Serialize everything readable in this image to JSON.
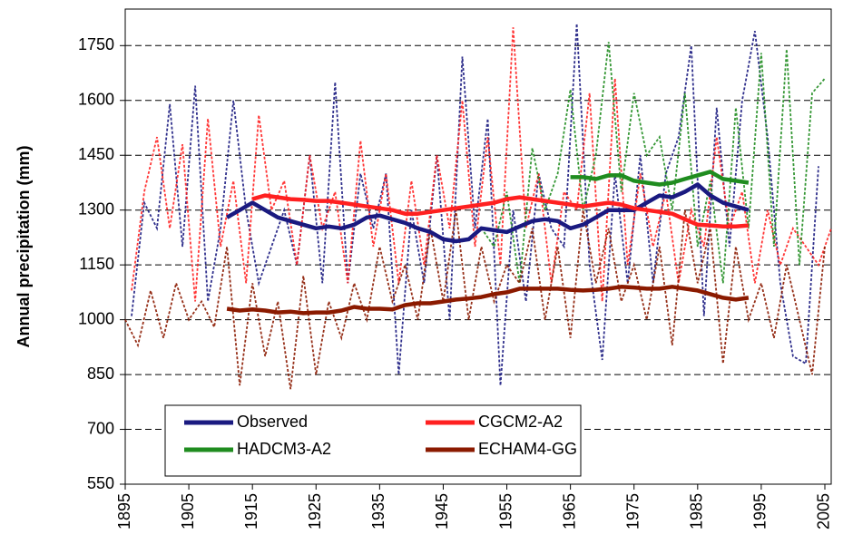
{
  "chart_data": {
    "type": "line",
    "y_label": "Annual precipitation (mm)",
    "xlim": [
      1895,
      2006
    ],
    "xticks": [
      1895,
      1905,
      1915,
      1925,
      1935,
      1945,
      1955,
      1965,
      1975,
      1985,
      1995,
      2005
    ],
    "ylim": [
      550,
      1850
    ],
    "yticks": [
      550,
      700,
      850,
      1000,
      1150,
      1300,
      1450,
      1600,
      1750
    ],
    "grid": true,
    "legend": "bottom-left",
    "series": [
      {
        "name": "Observed",
        "color": "#1a1a80",
        "x": [
          1911,
          1913,
          1915,
          1917,
          1919,
          1921,
          1923,
          1925,
          1927,
          1929,
          1931,
          1933,
          1935,
          1937,
          1939,
          1941,
          1943,
          1945,
          1947,
          1949,
          1951,
          1953,
          1955,
          1957,
          1959,
          1961,
          1963,
          1965,
          1967,
          1969,
          1971,
          1973,
          1975,
          1977,
          1979,
          1981,
          1983,
          1985,
          1987,
          1989,
          1991,
          1993
        ],
        "values": [
          1280,
          1300,
          1320,
          1300,
          1280,
          1270,
          1260,
          1250,
          1255,
          1250,
          1260,
          1280,
          1285,
          1275,
          1265,
          1250,
          1240,
          1220,
          1215,
          1220,
          1250,
          1245,
          1240,
          1255,
          1270,
          1275,
          1270,
          1250,
          1260,
          1280,
          1300,
          1300,
          1300,
          1320,
          1340,
          1335,
          1350,
          1370,
          1340,
          1320,
          1310,
          1300
        ],
        "annual_x": [
          1896,
          1898,
          1900,
          1902,
          1904,
          1906,
          1908,
          1910,
          1912,
          1914,
          1916,
          1918,
          1920,
          1922,
          1924,
          1926,
          1928,
          1930,
          1932,
          1934,
          1936,
          1938,
          1940,
          1942,
          1944,
          1946,
          1948,
          1950,
          1952,
          1954,
          1956,
          1958,
          1960,
          1962,
          1964,
          1966,
          1968,
          1970,
          1972,
          1974,
          1976,
          1978,
          1980,
          1982,
          1984,
          1986,
          1988,
          1990,
          1992,
          1994,
          1996,
          1998,
          2000,
          2002,
          2004
        ],
        "annual_values": [
          1010,
          1320,
          1250,
          1590,
          1200,
          1640,
          1050,
          1250,
          1600,
          1300,
          1100,
          1200,
          1300,
          1150,
          1450,
          1100,
          1650,
          1100,
          1400,
          1250,
          1400,
          850,
          1300,
          1100,
          1450,
          1000,
          1720,
          1250,
          1550,
          820,
          1300,
          1050,
          1400,
          1250,
          1200,
          1810,
          1150,
          890,
          1400,
          1100,
          1450,
          1100,
          1400,
          1500,
          1750,
          1010,
          1580,
          1200,
          1600,
          1790,
          1500,
          1100,
          900,
          880,
          1420
        ]
      },
      {
        "name": "CGCM2-A2",
        "color": "#ff2020",
        "x": [
          1915,
          1917,
          1919,
          1921,
          1923,
          1925,
          1927,
          1929,
          1931,
          1933,
          1935,
          1937,
          1939,
          1941,
          1943,
          1945,
          1947,
          1949,
          1951,
          1953,
          1955,
          1957,
          1959,
          1961,
          1963,
          1965,
          1967,
          1969,
          1971,
          1973,
          1975,
          1977,
          1979,
          1981,
          1983,
          1985,
          1987,
          1989,
          1991,
          1993
        ],
        "values": [
          1330,
          1340,
          1335,
          1330,
          1328,
          1325,
          1325,
          1320,
          1315,
          1310,
          1305,
          1300,
          1290,
          1290,
          1295,
          1300,
          1305,
          1310,
          1315,
          1320,
          1330,
          1335,
          1330,
          1325,
          1320,
          1315,
          1310,
          1315,
          1320,
          1315,
          1305,
          1300,
          1295,
          1290,
          1275,
          1260,
          1258,
          1255,
          1255,
          1258
        ],
        "annual_x": [
          1896,
          1898,
          1900,
          1902,
          1904,
          1906,
          1908,
          1910,
          1912,
          1914,
          1916,
          1918,
          1920,
          1922,
          1924,
          1926,
          1928,
          1930,
          1932,
          1934,
          1936,
          1938,
          1940,
          1942,
          1944,
          1946,
          1948,
          1950,
          1952,
          1954,
          1956,
          1958,
          1960,
          1962,
          1964,
          1966,
          1968,
          1970,
          1972,
          1974,
          1976,
          1978,
          1980,
          1982,
          1984,
          1986,
          1988,
          1990,
          1992,
          1994,
          1996,
          1998,
          2000,
          2002,
          2004,
          2006
        ],
        "annual_values": [
          1080,
          1350,
          1500,
          1250,
          1480,
          1050,
          1550,
          1200,
          1380,
          1100,
          1560,
          1300,
          1380,
          1150,
          1450,
          1250,
          1350,
          1100,
          1490,
          1200,
          1400,
          1100,
          1380,
          1150,
          1450,
          1250,
          1600,
          1200,
          1500,
          1150,
          1800,
          1250,
          1400,
          1100,
          1350,
          1300,
          1620,
          1050,
          1660,
          1150,
          1400,
          1200,
          1350,
          1100,
          1300,
          1200,
          1500,
          1250,
          1350,
          1100,
          1300,
          1150,
          1250,
          1200,
          1150,
          1250
        ]
      },
      {
        "name": "HADCM3-A2",
        "color": "#1f8c1f",
        "x": [
          1965,
          1967,
          1969,
          1971,
          1973,
          1975,
          1977,
          1979,
          1981,
          1983,
          1985,
          1987,
          1989,
          1991,
          1993
        ],
        "values": [
          1390,
          1390,
          1385,
          1395,
          1395,
          1380,
          1375,
          1370,
          1375,
          1385,
          1395,
          1405,
          1385,
          1380,
          1375
        ],
        "annual_x": [
          1951,
          1953,
          1955,
          1957,
          1959,
          1961,
          1963,
          1965,
          1967,
          1969,
          1971,
          1973,
          1975,
          1977,
          1979,
          1981,
          1983,
          1985,
          1987,
          1989,
          1991,
          1993,
          1995,
          1997,
          1999,
          2001,
          2003,
          2005
        ],
        "annual_values": [
          1250,
          1200,
          1350,
          1100,
          1470,
          1300,
          1400,
          1630,
          1300,
          1450,
          1760,
          1350,
          1620,
          1450,
          1500,
          1300,
          1620,
          1200,
          1380,
          1100,
          1580,
          1250,
          1730,
          1200,
          1740,
          1150,
          1620,
          1660
        ]
      },
      {
        "name": "ECHAM4-GG",
        "color": "#8b1a00",
        "x": [
          1911,
          1913,
          1915,
          1917,
          1919,
          1921,
          1923,
          1925,
          1927,
          1929,
          1931,
          1933,
          1935,
          1937,
          1939,
          1941,
          1943,
          1945,
          1947,
          1949,
          1951,
          1953,
          1955,
          1957,
          1959,
          1961,
          1963,
          1965,
          1967,
          1969,
          1971,
          1973,
          1975,
          1977,
          1979,
          1981,
          1983,
          1985,
          1987,
          1989,
          1991,
          1993
        ],
        "values": [
          1030,
          1025,
          1028,
          1025,
          1020,
          1022,
          1018,
          1020,
          1020,
          1025,
          1035,
          1030,
          1030,
          1028,
          1040,
          1045,
          1045,
          1050,
          1055,
          1058,
          1062,
          1070,
          1075,
          1085,
          1085,
          1085,
          1085,
          1082,
          1080,
          1082,
          1085,
          1090,
          1088,
          1085,
          1085,
          1090,
          1085,
          1080,
          1070,
          1060,
          1055,
          1060
        ],
        "annual_x": [
          1895,
          1897,
          1899,
          1901,
          1903,
          1905,
          1907,
          1909,
          1911,
          1913,
          1915,
          1917,
          1919,
          1921,
          1923,
          1925,
          1927,
          1929,
          1931,
          1933,
          1935,
          1937,
          1939,
          1941,
          1943,
          1945,
          1947,
          1949,
          1951,
          1953,
          1955,
          1957,
          1959,
          1961,
          1963,
          1965,
          1967,
          1969,
          1971,
          1973,
          1975,
          1977,
          1979,
          1981,
          1983,
          1985,
          1987,
          1989,
          1991,
          1993,
          1995,
          1997,
          1999,
          2001,
          2003,
          2005
        ],
        "annual_values": [
          1000,
          930,
          1080,
          950,
          1100,
          1000,
          1050,
          980,
          1200,
          820,
          1100,
          900,
          1050,
          810,
          1120,
          850,
          1050,
          950,
          1100,
          1000,
          1200,
          1050,
          1150,
          1000,
          1250,
          1050,
          1300,
          1000,
          1200,
          1050,
          1150,
          1100,
          1250,
          1000,
          1200,
          950,
          1300,
          1100,
          1250,
          1050,
          1150,
          1000,
          1200,
          930,
          1300,
          1100,
          1250,
          880,
          1200,
          1000,
          1100,
          950,
          1150,
          1000,
          850,
          1200
        ]
      }
    ]
  }
}
